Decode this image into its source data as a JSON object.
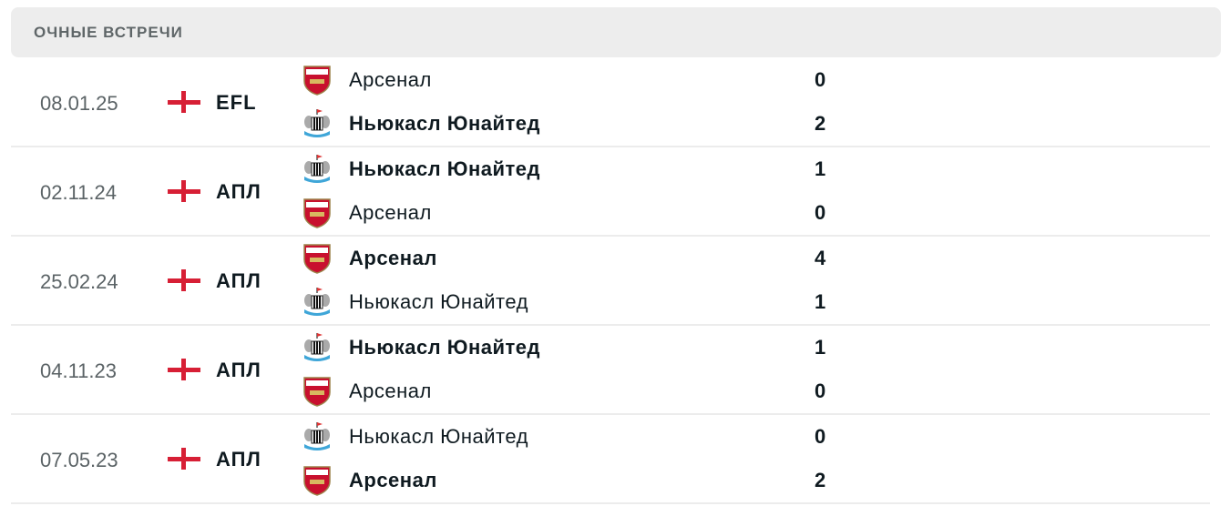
{
  "section_title": "ОЧНЫЕ ВСТРЕЧИ",
  "colors": {
    "flag_red": "#d71f35",
    "header_bg": "#ededed"
  },
  "matches": [
    {
      "date": "08.01.25",
      "flag": "england-flag",
      "league": "EFL",
      "home": {
        "name": "Арсенал",
        "score": "0",
        "logo": "arsenal",
        "winner": false
      },
      "away": {
        "name": "Ньюкасл Юнайтед",
        "score": "2",
        "logo": "newcastle",
        "winner": true
      }
    },
    {
      "date": "02.11.24",
      "flag": "england-flag",
      "league": "АПЛ",
      "home": {
        "name": "Ньюкасл Юнайтед",
        "score": "1",
        "logo": "newcastle",
        "winner": true
      },
      "away": {
        "name": "Арсенал",
        "score": "0",
        "logo": "arsenal",
        "winner": false
      }
    },
    {
      "date": "25.02.24",
      "flag": "england-flag",
      "league": "АПЛ",
      "home": {
        "name": "Арсенал",
        "score": "4",
        "logo": "arsenal",
        "winner": true
      },
      "away": {
        "name": "Ньюкасл Юнайтед",
        "score": "1",
        "logo": "newcastle",
        "winner": false
      }
    },
    {
      "date": "04.11.23",
      "flag": "england-flag",
      "league": "АПЛ",
      "home": {
        "name": "Ньюкасл Юнайтед",
        "score": "1",
        "logo": "newcastle",
        "winner": true
      },
      "away": {
        "name": "Арсенал",
        "score": "0",
        "logo": "arsenal",
        "winner": false
      }
    },
    {
      "date": "07.05.23",
      "flag": "england-flag",
      "league": "АПЛ",
      "home": {
        "name": "Ньюкасл Юнайтед",
        "score": "0",
        "logo": "newcastle",
        "winner": false
      },
      "away": {
        "name": "Арсенал",
        "score": "2",
        "logo": "arsenal",
        "winner": true
      }
    }
  ]
}
